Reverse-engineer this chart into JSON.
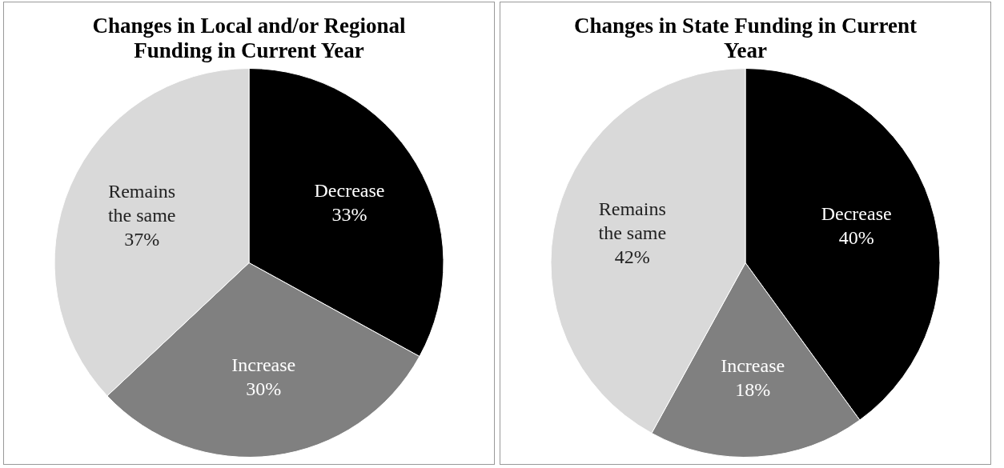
{
  "chart_data": [
    {
      "type": "pie",
      "title": "Changes in Local and/or Regional Funding in Current Year",
      "categories": [
        "Decrease",
        "Increase",
        "Remains the same"
      ],
      "values": [
        33,
        30,
        37
      ],
      "value_labels": [
        "33%",
        "30%",
        "37%"
      ],
      "colors": [
        "#000000",
        "#808080",
        "#d9d9d9"
      ]
    },
    {
      "type": "pie",
      "title": "Changes in State Funding in Current Year",
      "categories": [
        "Decrease",
        "Increase",
        "Remains the same"
      ],
      "values": [
        40,
        18,
        42
      ],
      "value_labels": [
        "40%",
        "18%",
        "42%"
      ],
      "colors": [
        "#000000",
        "#808080",
        "#d9d9d9"
      ]
    }
  ]
}
